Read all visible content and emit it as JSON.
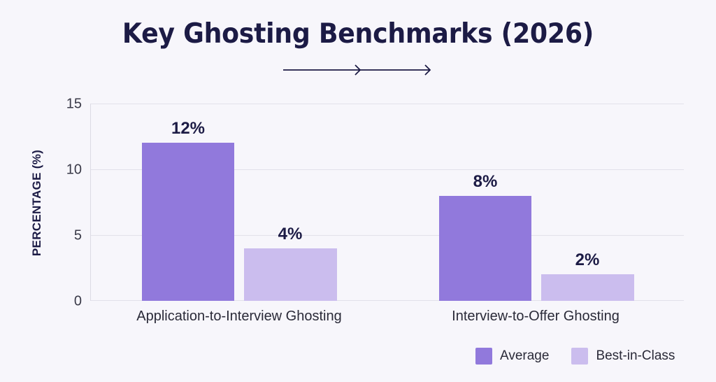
{
  "chart_data": {
    "type": "bar",
    "title": "Key Ghosting Benchmarks (2026)",
    "xlabel": "",
    "ylabel": "PERCENTAGE (%)",
    "ylim": [
      0,
      15
    ],
    "yticks": [
      "0",
      "5",
      "10",
      "15"
    ],
    "grid": true,
    "legend_position": "bottom-right",
    "categories": [
      "Application-to-Interview Ghosting",
      "Interview-to-Offer Ghosting"
    ],
    "series": [
      {
        "name": "Average",
        "values": [
          12,
          8
        ],
        "labels": [
          "12%",
          "8%"
        ],
        "color": "#9179dc"
      },
      {
        "name": "Best-in-Class",
        "values": [
          4,
          2
        ],
        "labels": [
          "4%",
          "2%"
        ],
        "color": "#cbbdee"
      }
    ]
  },
  "decoration": {
    "arrow_icon": "double-arrow-right"
  }
}
